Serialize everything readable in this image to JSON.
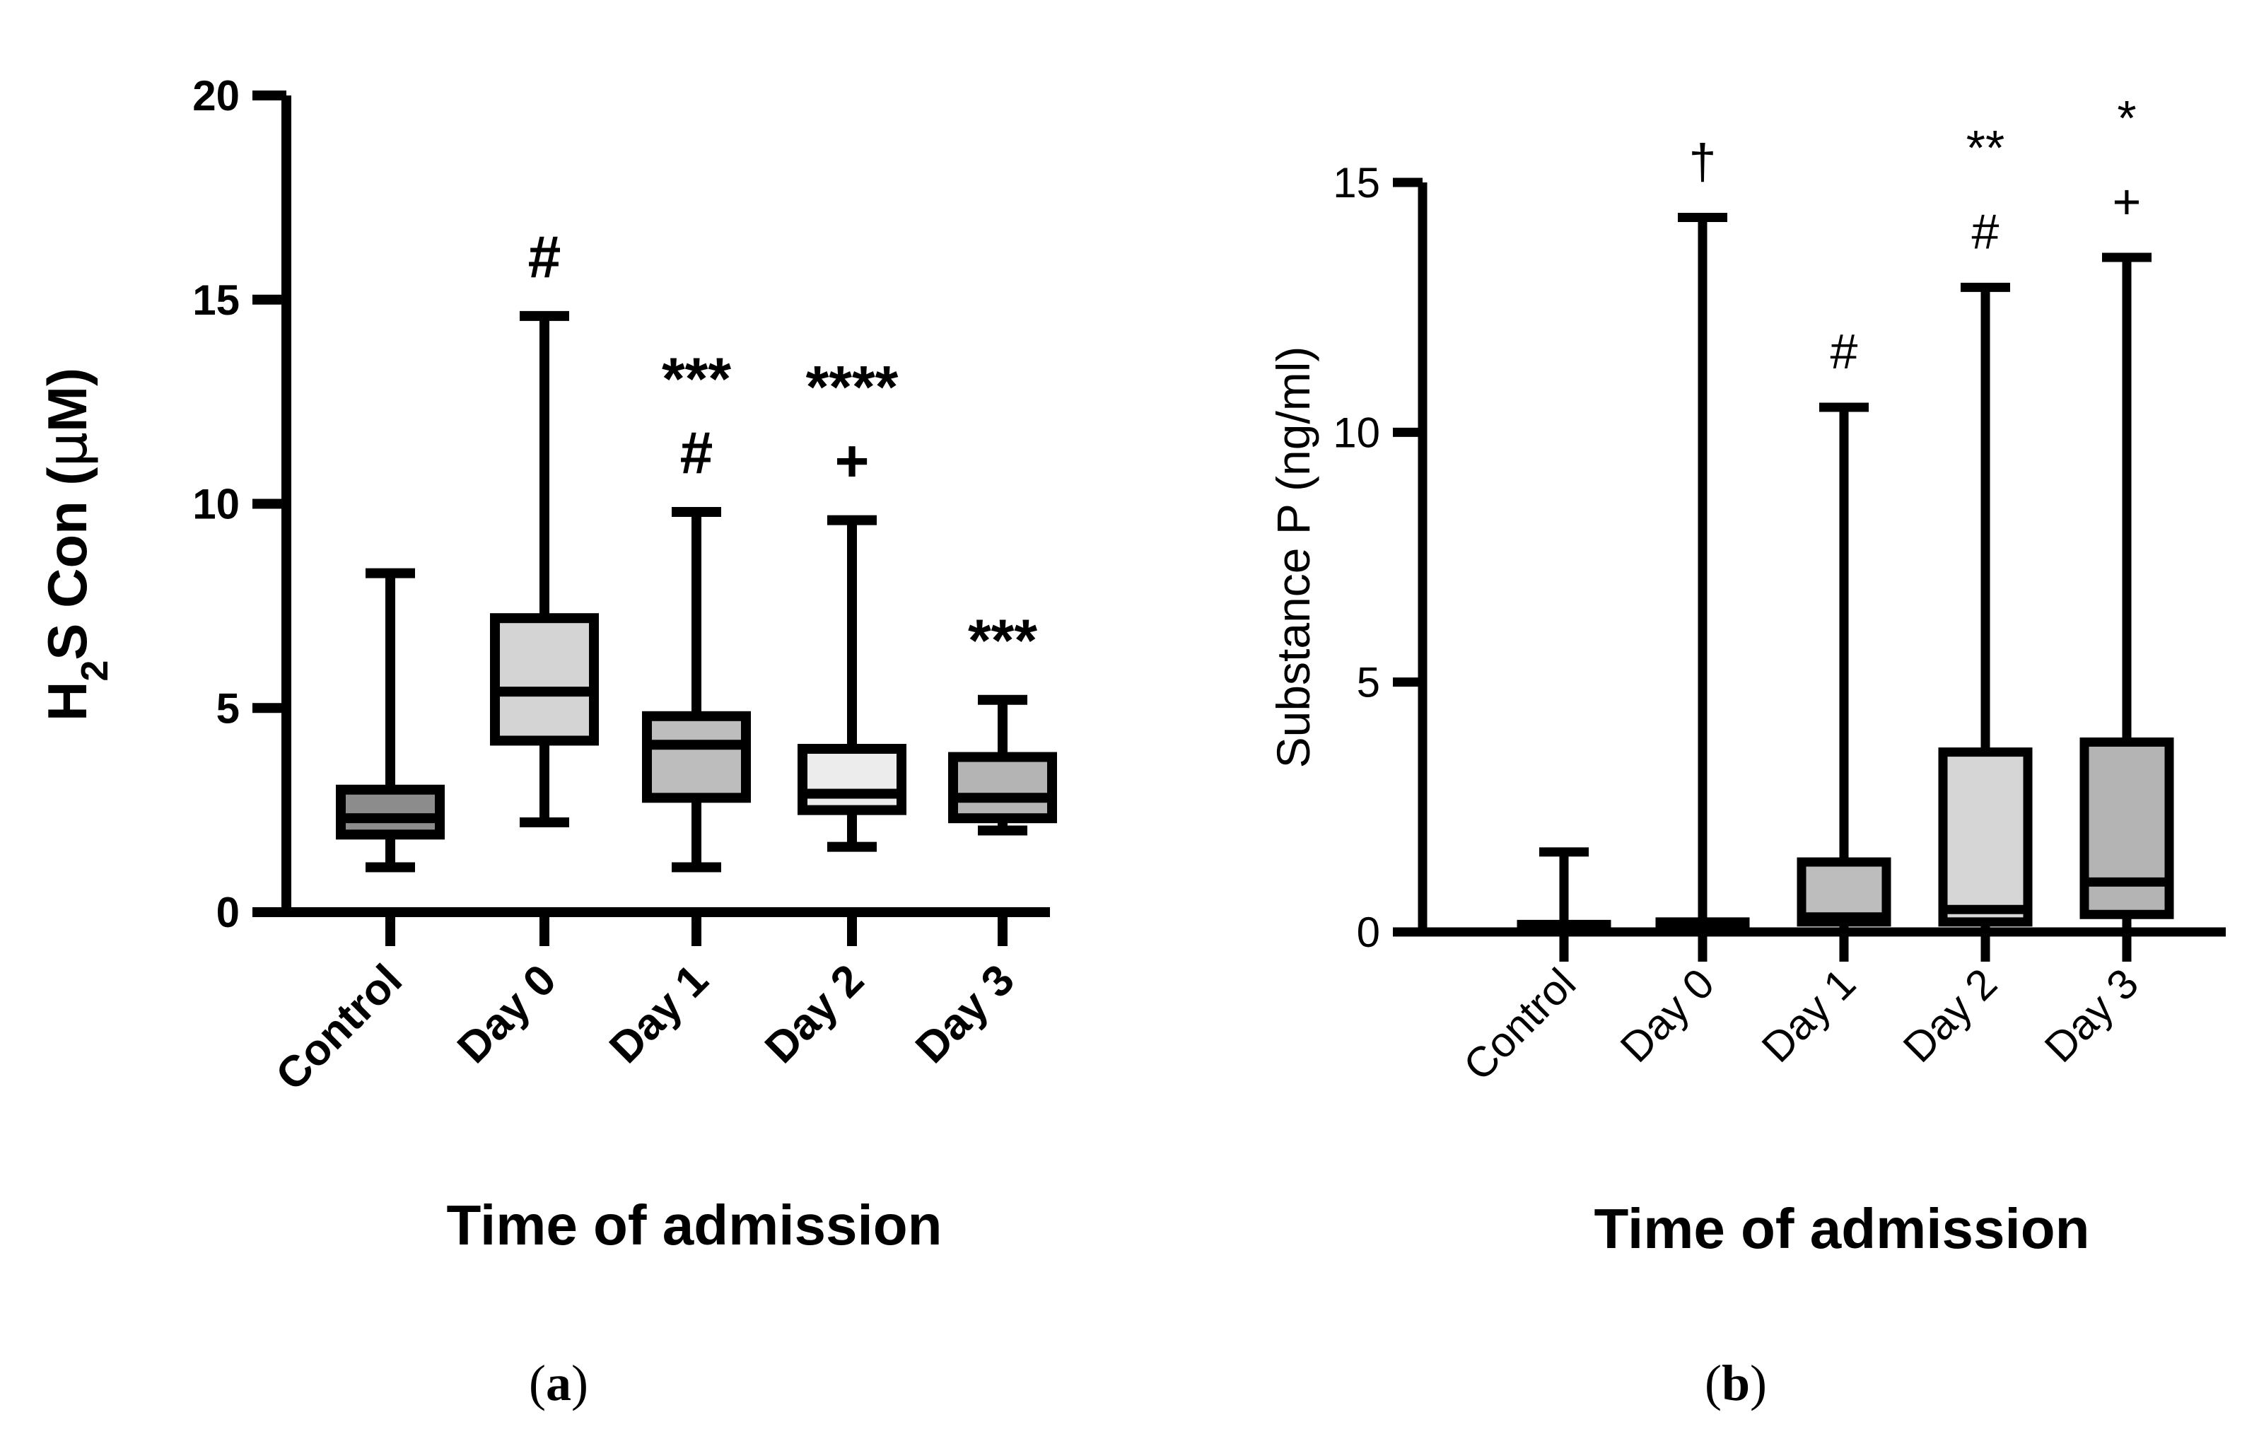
{
  "chart_data": [
    {
      "type": "box",
      "panel_label": "a",
      "xlabel": "Time of admission",
      "ylabel_parts": [
        "H",
        "2",
        "S Con  (",
        "μ",
        "M)"
      ],
      "ylim": [
        0,
        20
      ],
      "yticks": [
        0,
        5,
        10,
        15,
        20
      ],
      "categories": [
        "Control",
        "Day 0",
        "Day 1",
        "Day 2",
        "Day 3"
      ],
      "boxes": [
        {
          "min": 1.1,
          "q1": 1.9,
          "median": 2.3,
          "q3": 3.0,
          "max": 8.3,
          "fill": "#8c8c8c"
        },
        {
          "min": 2.2,
          "q1": 4.2,
          "median": 5.4,
          "q3": 7.2,
          "max": 14.6,
          "fill": "#d4d4d4"
        },
        {
          "min": 1.1,
          "q1": 2.8,
          "median": 4.1,
          "q3": 4.8,
          "max": 9.8,
          "fill": "#bdbdbd"
        },
        {
          "min": 1.6,
          "q1": 2.5,
          "median": 2.9,
          "q3": 4.0,
          "max": 9.6,
          "fill": "#ececec"
        },
        {
          "min": 2.0,
          "q1": 2.3,
          "median": 2.8,
          "q3": 3.8,
          "max": 5.2,
          "fill": "#b4b4b4"
        }
      ],
      "annotations": [
        {
          "category": "Day 0",
          "lines": [
            "#"
          ]
        },
        {
          "category": "Day 1",
          "lines": [
            "***",
            "#"
          ]
        },
        {
          "category": "Day 2",
          "lines": [
            "****",
            "+"
          ]
        },
        {
          "category": "Day 3",
          "lines": [
            "***"
          ]
        }
      ]
    },
    {
      "type": "box",
      "panel_label": "b",
      "xlabel": "Time of admission",
      "ylabel": "Substance P (ng/ml)",
      "ylim": [
        0,
        15
      ],
      "yticks": [
        0,
        5,
        10,
        15
      ],
      "categories": [
        "Control",
        "Day 0",
        "Day 1",
        "Day 2",
        "Day 3"
      ],
      "boxes": [
        {
          "min": 0,
          "q1": 0.05,
          "median": 0.1,
          "q3": 0.15,
          "max": 1.6,
          "fill": "#bdbdbd"
        },
        {
          "min": 0,
          "q1": 0.1,
          "median": 0.15,
          "q3": 0.2,
          "max": 14.3,
          "fill": "#bdbdbd"
        },
        {
          "min": 0,
          "q1": 0.2,
          "median": 0.3,
          "q3": 1.4,
          "max": 10.5,
          "fill": "#bdbdbd"
        },
        {
          "min": 0,
          "q1": 0.2,
          "median": 0.45,
          "q3": 3.6,
          "max": 12.9,
          "fill": "#d6d6d6"
        },
        {
          "min": 0,
          "q1": 0.35,
          "median": 1.0,
          "q3": 3.8,
          "max": 13.5,
          "fill": "#b4b4b4"
        }
      ],
      "annotations": [
        {
          "category": "Day 0",
          "lines": [
            "†"
          ]
        },
        {
          "category": "Day 1",
          "lines": [
            "#"
          ]
        },
        {
          "category": "Day 2",
          "lines": [
            "**",
            "#"
          ]
        },
        {
          "category": "Day 3",
          "lines": [
            "*",
            "+"
          ]
        }
      ]
    }
  ]
}
